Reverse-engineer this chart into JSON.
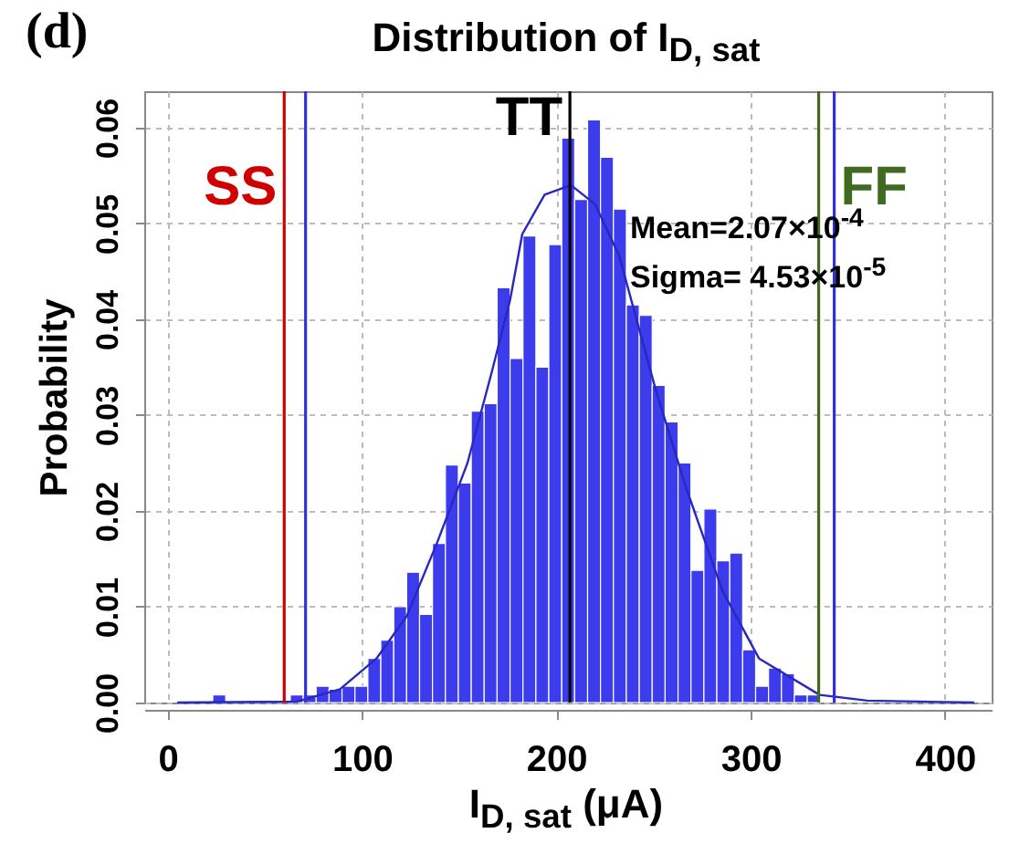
{
  "chart_data": {
    "type": "histogram",
    "title": "Distribution of I$_{D, sat}$",
    "xlabel": "I$_{D, sat}$ (μA)",
    "ylabel": "Probability",
    "annotations": [
      "(d)",
      "Mean=2.07×10$^{-4}$",
      "Sigma= 4.53×10$^{-5}$"
    ],
    "bins": [
      9.95,
      16.6,
      23.25,
      29.9,
      36.55,
      43.2,
      49.85,
      56.5,
      63.15,
      69.8,
      76.45,
      83.1,
      89.75,
      96.4,
      103.05,
      109.7,
      116.35,
      123,
      129.65,
      136.3,
      142.95,
      149.6,
      156.25,
      162.9,
      169.55,
      176.2,
      182.85,
      189.5,
      196.15,
      202.8,
      209.45,
      216.1,
      222.75,
      229.4,
      236.05,
      242.7,
      249.35,
      256,
      262.65,
      269.3,
      275.95,
      282.6,
      289.25,
      295.9,
      302.55,
      309.2,
      315.85,
      322.5,
      329.15,
      335.8,
      342.45,
      349.1,
      355.75,
      362.4,
      369.05,
      375.7,
      382.35,
      389,
      395.65,
      402.3,
      408.95,
      415.6
    ],
    "series": [
      {
        "color": "#3c3cec",
        "values": [
          0,
          0,
          0.0008,
          0,
          0,
          0,
          0,
          0,
          0.0008,
          0.0008,
          0.0017,
          0.0014,
          0.0017,
          0.0017,
          0.0046,
          0.0065,
          0.01,
          0.0136,
          0.0092,
          0.0166,
          0.0248,
          0.0229,
          0.0304,
          0.0312,
          0.0433,
          0.0359,
          0.0487,
          0.035,
          0.0478,
          0.0589,
          0.0525,
          0.0608,
          0.0569,
          0.0515,
          0.0415,
          0.0404,
          0.0331,
          0.0293,
          0.025,
          0.0138,
          0.0202,
          0.0148,
          0.0156,
          0.0055,
          0.0017,
          0.0036,
          0.003,
          0.0008,
          0.0008,
          0,
          0,
          0,
          0,
          0,
          0,
          0,
          0,
          0,
          0,
          0,
          0
        ]
      },
      {
        "type": "line",
        "color": "#2828c0",
        "x": [
          5,
          66.8,
          88.7,
          107.5,
          123,
          138.7,
          154.3,
          166.8,
          176.2,
          182.5,
          194,
          207.5,
          220,
          232.4,
          251.2,
          266.8,
          285.6,
          304.3,
          335.5,
          360,
          415
        ],
        "values": [
          0,
          0.0001,
          0.0014,
          0.0046,
          0.009,
          0.0167,
          0.025,
          0.0345,
          0.042,
          0.0489,
          0.053,
          0.054,
          0.052,
          0.0466,
          0.0326,
          0.0224,
          0.0116,
          0.0046,
          0.0008,
          0.0002,
          0
        ]
      }
    ],
    "xlim": [
      -12,
      424
    ],
    "xticks": [
      0,
      100,
      200,
      300,
      400
    ],
    "ylim": [
      0,
      0.0638
    ],
    "yticks": [
      {
        "value": 0,
        "label": "0.00"
      },
      {
        "value": 0.01,
        "label": "0.01"
      },
      {
        "value": 0.02,
        "label": "0.02"
      },
      {
        "value": 0.03,
        "label": "0.03"
      },
      {
        "value": 0.04,
        "label": "0.04"
      },
      {
        "value": 0.05,
        "label": "0.05"
      },
      {
        "value": 0.06,
        "label": "0.06"
      }
    ],
    "ref_lines": [
      {
        "axis": "x",
        "value": 60,
        "label": "SS",
        "color": "#d00000"
      },
      {
        "axis": "x",
        "value": 71,
        "label": null,
        "color": "#3030e0"
      },
      {
        "axis": "x",
        "value": 207,
        "label": "TT",
        "color": "#000000"
      },
      {
        "axis": "x",
        "value": 335,
        "label": "FF",
        "color": "#3f6a20"
      },
      {
        "axis": "x",
        "value": 343,
        "label": null,
        "color": "#3030e0"
      }
    ],
    "grid": true
  }
}
